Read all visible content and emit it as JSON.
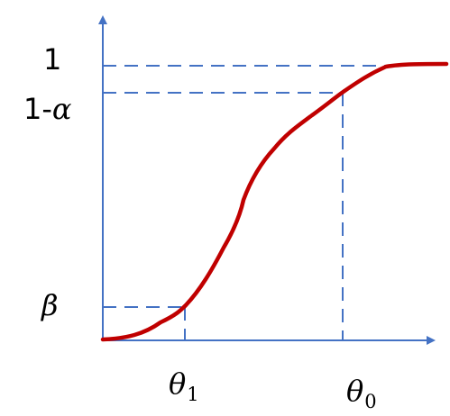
{
  "diagram": {
    "y_labels": {
      "one": "1",
      "one_minus_alpha_prefix": "1-",
      "one_minus_alpha_symbol": "α",
      "beta": "β"
    },
    "x_labels": {
      "theta1_symbol": "θ",
      "theta1_subscript": "1",
      "theta0_symbol": "θ",
      "theta0_subscript": "0"
    },
    "colors": {
      "axis": "#4472c4",
      "guides": "#4472c4",
      "curve": "#c00000",
      "text": "#000000"
    }
  }
}
